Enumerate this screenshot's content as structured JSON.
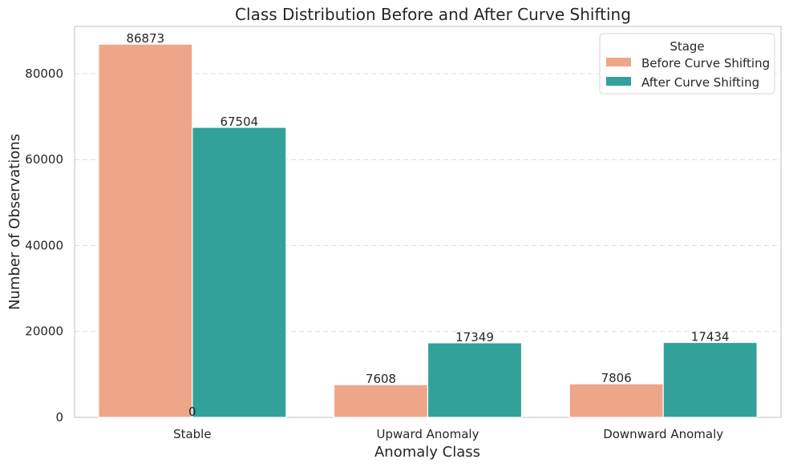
{
  "chart_data": {
    "type": "bar",
    "title": "Class Distribution Before and After Curve Shifting",
    "xlabel": "Anomaly Class",
    "ylabel": "Number of Observations",
    "categories": [
      "Stable",
      "Upward Anomaly",
      "Downward Anomaly"
    ],
    "series": [
      {
        "name": "Before Curve Shifting",
        "color": "#eea688",
        "values": [
          86873,
          7608,
          7806
        ]
      },
      {
        "name": "After Curve Shifting",
        "color": "#32a19a",
        "values": [
          67504,
          17349,
          17434
        ]
      }
    ],
    "extra_annotation": "0",
    "legend_title": "Stage",
    "legend_position": "top-right",
    "ylim": [
      0,
      91000
    ],
    "yticks": [
      0,
      20000,
      40000,
      60000,
      80000
    ],
    "ytick_labels": [
      "0",
      "20000",
      "40000",
      "60000",
      "80000"
    ],
    "grid": "horizontal-dashed"
  }
}
